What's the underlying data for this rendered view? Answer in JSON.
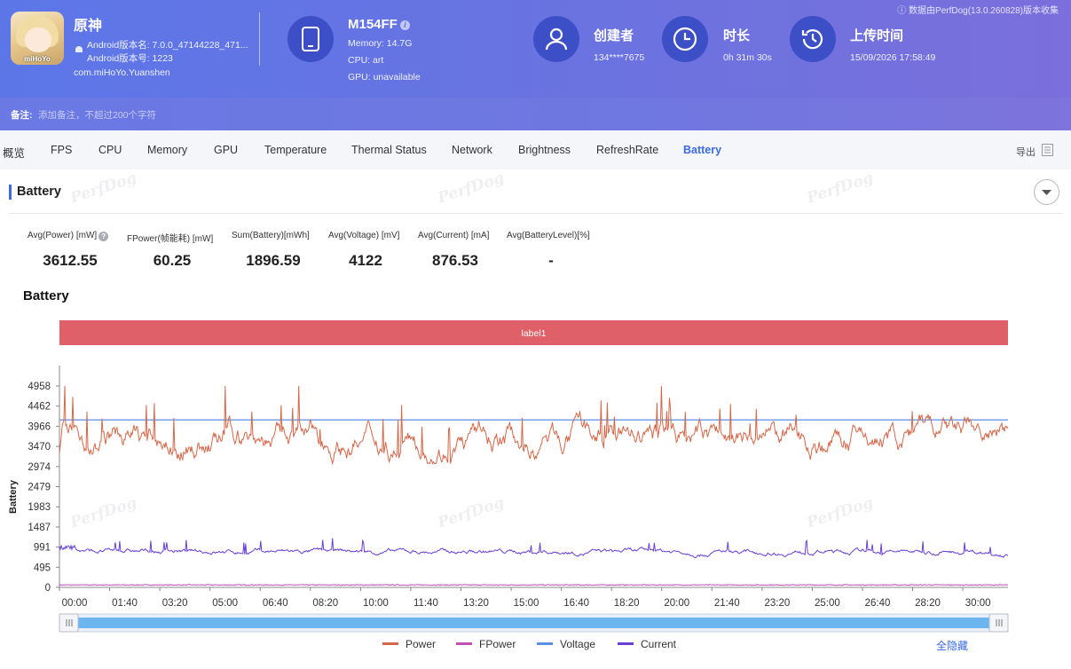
{
  "app": {
    "name": "原神",
    "version_name": "Android版本名: 7.0.0_47144228_471...",
    "version_code": "Android版本号: 1223",
    "package": "com.miHoYo.Yuanshen",
    "icon_logo": "miHoYo"
  },
  "device": {
    "model": "M154FF",
    "memory": "Memory: 14.7G",
    "cpu": "CPU: art",
    "gpu": "GPU: unavailable"
  },
  "creator": {
    "title": "创建者",
    "value": "134****7675"
  },
  "duration": {
    "title": "时长",
    "value": "0h 31m 30s"
  },
  "upload": {
    "title": "上传时间",
    "value": "15/09/2026 17:58:49"
  },
  "collect_note": "数据由PerfDog(13.0.260828)版本收集",
  "note": {
    "label": "备注:",
    "placeholder": "添加备注，不超过200个字符"
  },
  "tabs": [
    "概览",
    "FPS",
    "CPU",
    "Memory",
    "GPU",
    "Temperature",
    "Thermal Status",
    "Network",
    "Brightness",
    "RefreshRate",
    "Battery"
  ],
  "active_tab": "Battery",
  "export_label": "导出",
  "section_title": "Battery",
  "metrics": [
    {
      "label": "Avg(Power) [mW]",
      "value": "3612.55"
    },
    {
      "label": "FPower(帧能耗) [mW]",
      "value": "60.25"
    },
    {
      "label": "Sum(Battery)[mWh]",
      "value": "1896.59"
    },
    {
      "label": "Avg(Voltage) [mV]",
      "value": "4122"
    },
    {
      "label": "Avg(Current) [mA]",
      "value": "876.53"
    },
    {
      "label": "Avg(BatteryLevel)[%]",
      "value": "-"
    }
  ],
  "chart_title": "Battery",
  "watermark": "PerfDog",
  "hide_all": "全隐藏",
  "colors": {
    "accent": "#3b6ae6",
    "header": "#6273e2",
    "label_band": "#e0606a"
  },
  "chart_data": {
    "type": "line",
    "title": "Battery",
    "ylabel": "Battery",
    "xlabel": "",
    "label_band": "label1",
    "y_ticks": [
      0,
      495,
      991,
      1487,
      1983,
      2479,
      2974,
      3470,
      3966,
      4462,
      4958
    ],
    "ylim": [
      0,
      5450
    ],
    "x_ticks": [
      "00:00",
      "01:40",
      "03:20",
      "05:00",
      "06:40",
      "08:20",
      "10:00",
      "11:40",
      "13:20",
      "15:00",
      "16:40",
      "18:20",
      "20:00",
      "21:40",
      "23:20",
      "25:00",
      "26:40",
      "28:20",
      "30:00"
    ],
    "xlim_seconds": [
      0,
      1890
    ],
    "grid": false,
    "legend_position": "bottom",
    "series": [
      {
        "name": "Power",
        "color": "#d4674a",
        "mean": 3612.55,
        "min": 3100,
        "max": 4958
      },
      {
        "name": "FPower",
        "color": "#c24fb4",
        "mean": 60.25
      },
      {
        "name": "Voltage",
        "color": "#5b8ee6",
        "mean": 4122
      },
      {
        "name": "Current",
        "color": "#6a3fd4",
        "mean": 876.53
      }
    ]
  }
}
